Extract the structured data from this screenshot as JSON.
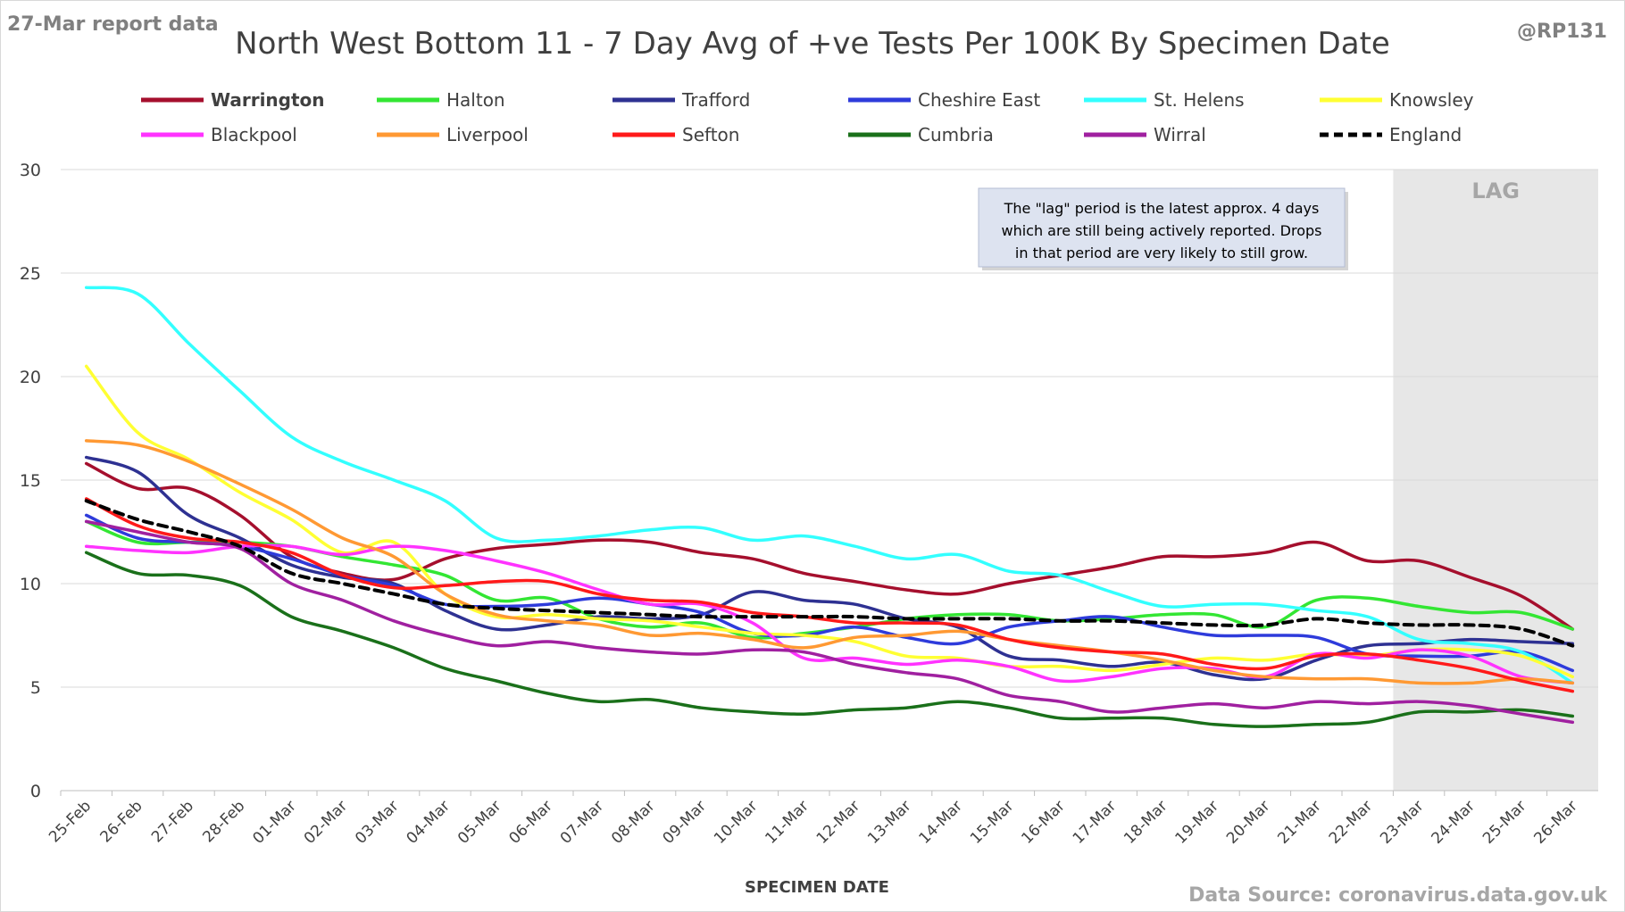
{
  "header": {
    "report_label": "27-Mar report data",
    "handle": "@RP131",
    "source": "Data Source: coronavirus.data.gov.uk"
  },
  "annotation": {
    "lag_label": "LAG",
    "note_lines": [
      "The \"lag\" period is the latest approx. 4 days",
      "which are still being actively reported. Drops",
      "in that period are very likely to still grow."
    ]
  },
  "chart_data": {
    "type": "line",
    "title": "North West Bottom 11 - 7 Day Avg of +ve Tests Per 100K By Specimen Date",
    "xlabel": "SPECIMEN DATE",
    "ylabel": "",
    "ylim": [
      0,
      30
    ],
    "yticks": [
      0,
      5,
      10,
      15,
      20,
      25,
      30
    ],
    "grid": true,
    "legend_position": "top",
    "lag_period": [
      "23-Mar",
      "26-Mar"
    ],
    "categories": [
      "25-Feb",
      "26-Feb",
      "27-Feb",
      "28-Feb",
      "01-Mar",
      "02-Mar",
      "03-Mar",
      "04-Mar",
      "05-Mar",
      "06-Mar",
      "07-Mar",
      "08-Mar",
      "09-Mar",
      "10-Mar",
      "11-Mar",
      "12-Mar",
      "13-Mar",
      "14-Mar",
      "15-Mar",
      "16-Mar",
      "17-Mar",
      "18-Mar",
      "19-Mar",
      "20-Mar",
      "21-Mar",
      "22-Mar",
      "23-Mar",
      "24-Mar",
      "25-Mar",
      "26-Mar"
    ],
    "series": [
      {
        "name": "Warrington",
        "color": "#a50f2d",
        "bold": true,
        "dashed": false,
        "values": [
          15.8,
          14.6,
          14.6,
          13.3,
          11.3,
          10.5,
          10.2,
          11.2,
          11.7,
          11.9,
          12.1,
          12.0,
          11.5,
          11.2,
          10.5,
          10.1,
          9.7,
          9.5,
          10.0,
          10.4,
          10.8,
          11.3,
          11.3,
          11.5,
          12.0,
          11.1,
          11.1,
          10.3,
          9.4,
          7.8
        ]
      },
      {
        "name": "Halton",
        "color": "#33e633",
        "bold": false,
        "dashed": false,
        "values": [
          13.0,
          12.0,
          12.0,
          12.0,
          11.8,
          11.3,
          10.9,
          10.4,
          9.2,
          9.3,
          8.3,
          7.9,
          8.1,
          7.4,
          7.6,
          7.9,
          8.3,
          8.5,
          8.5,
          8.2,
          8.3,
          8.5,
          8.5,
          7.9,
          9.2,
          9.3,
          8.9,
          8.6,
          8.6,
          7.8
        ]
      },
      {
        "name": "Trafford",
        "color": "#2e3192",
        "bold": false,
        "dashed": false,
        "values": [
          16.1,
          15.4,
          13.3,
          12.2,
          10.9,
          10.3,
          10.0,
          8.7,
          7.8,
          8.0,
          8.4,
          8.3,
          8.5,
          9.6,
          9.2,
          9.0,
          8.3,
          7.9,
          6.5,
          6.3,
          6.0,
          6.2,
          5.6,
          5.4,
          6.3,
          7.0,
          7.1,
          7.3,
          7.2,
          7.1
        ]
      },
      {
        "name": "Cheshire East",
        "color": "#2e3bdb",
        "bold": false,
        "dashed": false,
        "values": [
          13.3,
          12.2,
          12.0,
          11.8,
          11.2,
          10.4,
          9.9,
          9.0,
          8.9,
          9.0,
          9.3,
          9.0,
          8.6,
          7.6,
          7.5,
          7.9,
          7.4,
          7.1,
          7.9,
          8.2,
          8.4,
          7.9,
          7.5,
          7.5,
          7.4,
          6.6,
          6.5,
          6.5,
          6.7,
          5.8
        ]
      },
      {
        "name": "St. Helens",
        "color": "#33ffff",
        "bold": false,
        "dashed": false,
        "values": [
          24.3,
          24.0,
          21.6,
          19.3,
          17.1,
          15.9,
          15.0,
          14.0,
          12.2,
          12.1,
          12.3,
          12.6,
          12.7,
          12.1,
          12.3,
          11.8,
          11.2,
          11.4,
          10.6,
          10.4,
          9.6,
          8.9,
          9.0,
          9.0,
          8.7,
          8.4,
          7.3,
          7.1,
          6.7,
          5.2
        ]
      },
      {
        "name": "Knowsley",
        "color": "#ffff33",
        "bold": false,
        "dashed": false,
        "values": [
          20.5,
          17.3,
          16.0,
          14.4,
          13.1,
          11.5,
          12.0,
          9.5,
          8.4,
          8.5,
          8.3,
          8.2,
          7.9,
          7.6,
          7.5,
          7.2,
          6.5,
          6.4,
          6.0,
          6.0,
          5.8,
          6.1,
          6.4,
          6.3,
          6.6,
          6.5,
          6.8,
          6.8,
          6.5,
          5.5
        ]
      },
      {
        "name": "Blackpool",
        "color": "#ff33ff",
        "bold": false,
        "dashed": false,
        "values": [
          11.8,
          11.6,
          11.5,
          11.8,
          11.8,
          11.4,
          11.8,
          11.6,
          11.1,
          10.5,
          9.7,
          9.0,
          9.0,
          8.1,
          6.4,
          6.4,
          6.1,
          6.3,
          6.0,
          5.3,
          5.5,
          5.9,
          5.9,
          5.5,
          6.6,
          6.4,
          6.8,
          6.5,
          5.5,
          5.2
        ]
      },
      {
        "name": "Liverpool",
        "color": "#ff9933",
        "bold": false,
        "dashed": false,
        "values": [
          16.9,
          16.7,
          15.9,
          14.8,
          13.6,
          12.2,
          11.3,
          9.5,
          8.5,
          8.2,
          8.0,
          7.5,
          7.6,
          7.3,
          6.9,
          7.4,
          7.5,
          7.7,
          7.3,
          7.0,
          6.7,
          6.3,
          5.8,
          5.5,
          5.4,
          5.4,
          5.2,
          5.2,
          5.4,
          5.2
        ]
      },
      {
        "name": "Sefton",
        "color": "#ff1a1a",
        "bold": false,
        "dashed": false,
        "values": [
          14.1,
          12.8,
          12.2,
          12.0,
          11.5,
          10.4,
          9.8,
          9.9,
          10.1,
          10.1,
          9.5,
          9.2,
          9.1,
          8.6,
          8.4,
          8.1,
          8.1,
          8.0,
          7.3,
          6.9,
          6.7,
          6.6,
          6.1,
          5.9,
          6.5,
          6.6,
          6.3,
          5.9,
          5.3,
          4.8
        ]
      },
      {
        "name": "Cumbria",
        "color": "#1a701a",
        "bold": false,
        "dashed": false,
        "values": [
          11.5,
          10.5,
          10.4,
          9.9,
          8.4,
          7.7,
          6.9,
          5.9,
          5.3,
          4.7,
          4.3,
          4.4,
          4.0,
          3.8,
          3.7,
          3.9,
          4.0,
          4.3,
          4.0,
          3.5,
          3.5,
          3.5,
          3.2,
          3.1,
          3.2,
          3.3,
          3.8,
          3.8,
          3.9,
          3.6
        ]
      },
      {
        "name": "Wirral",
        "color": "#a020a0",
        "bold": false,
        "dashed": false,
        "values": [
          13.0,
          12.5,
          12.0,
          11.7,
          10.0,
          9.2,
          8.2,
          7.5,
          7.0,
          7.2,
          6.9,
          6.7,
          6.6,
          6.8,
          6.7,
          6.1,
          5.7,
          5.4,
          4.6,
          4.3,
          3.8,
          4.0,
          4.2,
          4.0,
          4.3,
          4.2,
          4.3,
          4.1,
          3.7,
          3.3
        ]
      },
      {
        "name": "England",
        "color": "#000000",
        "bold": false,
        "dashed": true,
        "values": [
          14.0,
          13.1,
          12.5,
          11.8,
          10.5,
          10.0,
          9.5,
          9.0,
          8.8,
          8.7,
          8.6,
          8.5,
          8.4,
          8.4,
          8.4,
          8.4,
          8.3,
          8.3,
          8.3,
          8.2,
          8.2,
          8.1,
          8.0,
          8.0,
          8.3,
          8.1,
          8.0,
          8.0,
          7.8,
          7.0
        ]
      }
    ]
  }
}
